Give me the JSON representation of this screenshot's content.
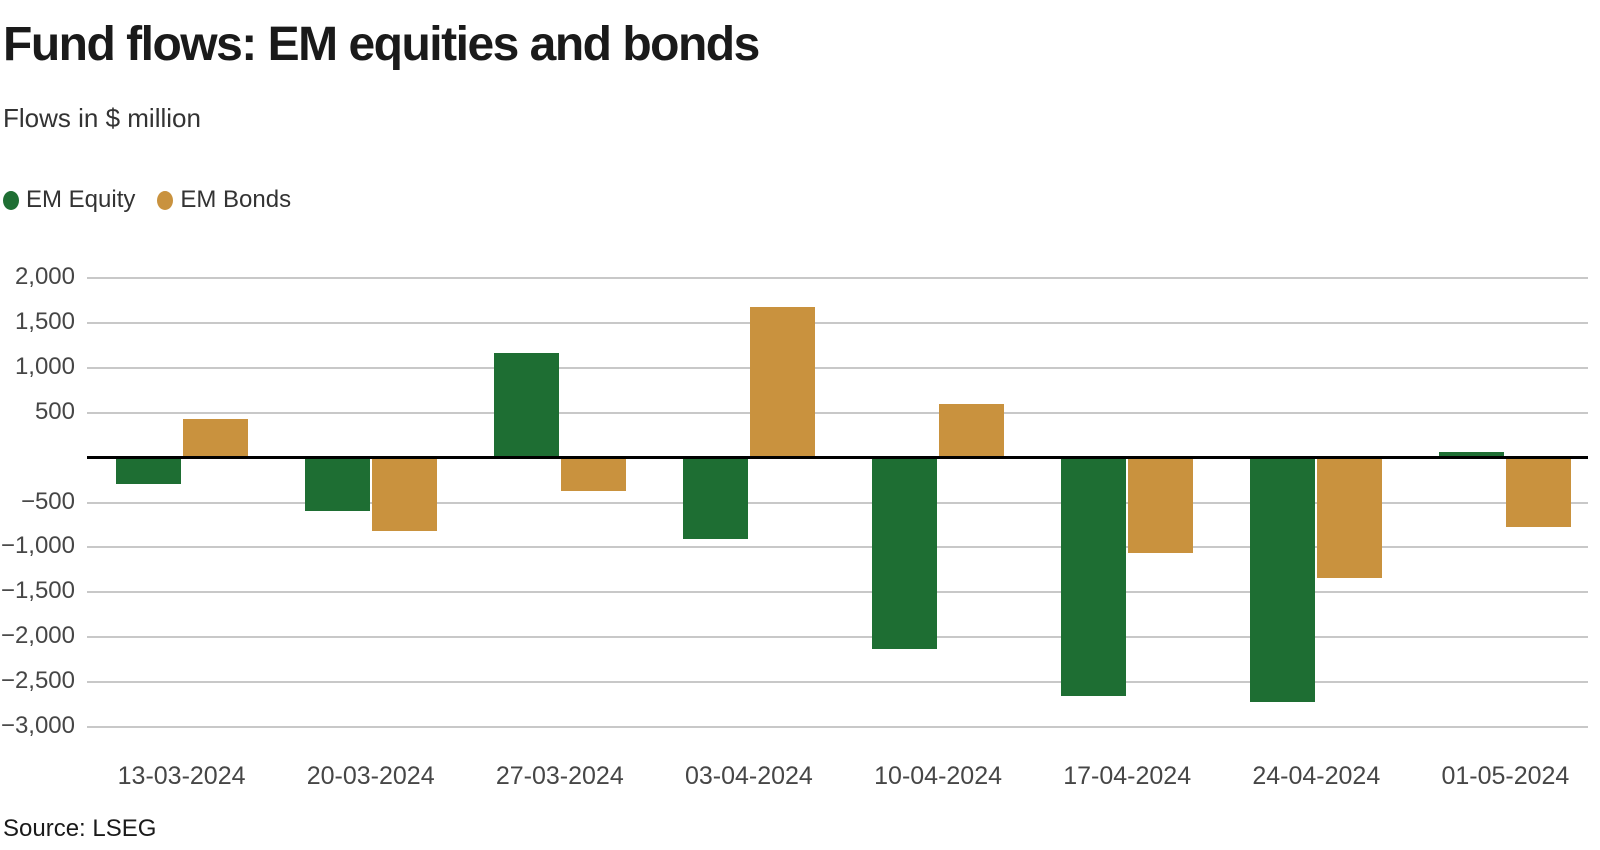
{
  "title": "Fund flows: EM equities and bonds",
  "subtitle": "Flows in $ million",
  "source": "Source: LSEG",
  "legend": [
    {
      "label": "EM Equity",
      "color": "#1e6e33"
    },
    {
      "label": "EM Bonds",
      "color": "#c9923e"
    }
  ],
  "colors": {
    "equity": "#1e6e33",
    "bonds": "#c9923e",
    "grid": "#c8c8c8",
    "zero_line": "#000000",
    "text": "#1a1a1a",
    "muted_text": "#464646"
  },
  "chart_data": {
    "type": "bar",
    "title": "Fund flows: EM equities and bonds",
    "subtitle": "Flows in $ million",
    "categories": [
      "13-03-2024",
      "20-03-2024",
      "27-03-2024",
      "03-04-2024",
      "10-04-2024",
      "17-04-2024",
      "24-04-2024",
      "01-05-2024"
    ],
    "series": [
      {
        "name": "EM Equity",
        "color": "#1e6e33",
        "values": [
          -290,
          -600,
          1160,
          -910,
          -2130,
          -2650,
          -2720,
          60
        ]
      },
      {
        "name": "EM Bonds",
        "color": "#c9923e",
        "values": [
          430,
          -820,
          -370,
          1680,
          600,
          -1060,
          -1340,
          -770
        ]
      }
    ],
    "xlabel": "",
    "ylabel": "Flows in $ million",
    "ylim": [
      -3000,
      2000
    ],
    "ytick_step": 500,
    "grid": true,
    "legend_position": "top-left",
    "source": "Source: LSEG"
  }
}
